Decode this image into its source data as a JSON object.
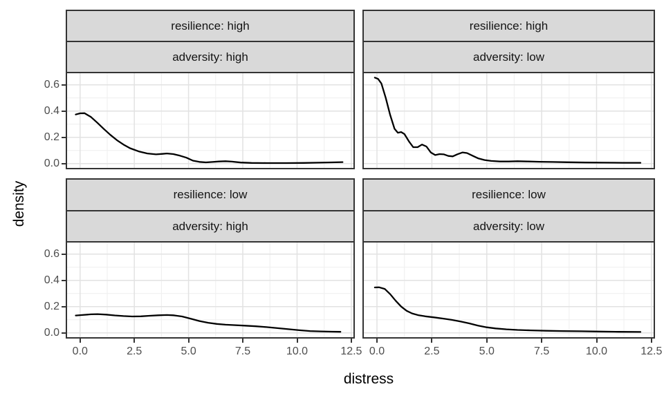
{
  "chart_data": {
    "type": "line",
    "subtype": "faceted-density",
    "xlabel": "distress",
    "ylabel": "density",
    "x_domain": [
      -0.6,
      12.6
    ],
    "y_domain": [
      -0.033,
      0.688
    ],
    "x_major_ticks": [
      0,
      2.5,
      5,
      7.5,
      10,
      12.5
    ],
    "x_minor_ticks": [
      1.25,
      3.75,
      6.25,
      8.75,
      11.25
    ],
    "y_major_ticks": [
      0,
      0.2,
      0.4,
      0.6
    ],
    "y_minor_ticks": [
      0.1,
      0.3,
      0.5
    ],
    "x_tick_labels": [
      "0.0",
      "2.5",
      "5.0",
      "7.5",
      "10.0",
      "12.5"
    ],
    "y_tick_labels": [
      "0.6",
      "0.4",
      "0.2",
      "0.0"
    ],
    "y_tick_values": [
      0.6,
      0.4,
      0.2,
      0.0
    ],
    "facet_row_variable": "resilience",
    "facet_col_variable": "adversity",
    "grid": "on",
    "legend": "none",
    "colors": {
      "line": "#000000",
      "grid_major": "#E2E2E2",
      "grid_minor": "#F0F0F0",
      "panel_border": "#333333",
      "strip_fill": "#D9D9D9",
      "strip_border": "#333333",
      "axis_text": "#4D4D4D",
      "title_text": "#000000",
      "background": "#FFFFFF"
    },
    "panels": [
      {
        "strip_top": "resilience: high",
        "strip_bottom": "adversity: high",
        "points": [
          [
            -0.2,
            0.374
          ],
          [
            0.0,
            0.383
          ],
          [
            0.2,
            0.384
          ],
          [
            0.5,
            0.355
          ],
          [
            0.8,
            0.31
          ],
          [
            1.1,
            0.263
          ],
          [
            1.4,
            0.218
          ],
          [
            1.7,
            0.178
          ],
          [
            2.0,
            0.145
          ],
          [
            2.3,
            0.117
          ],
          [
            2.7,
            0.093
          ],
          [
            3.1,
            0.077
          ],
          [
            3.5,
            0.07
          ],
          [
            3.8,
            0.074
          ],
          [
            4.0,
            0.077
          ],
          [
            4.3,
            0.072
          ],
          [
            4.6,
            0.06
          ],
          [
            4.9,
            0.045
          ],
          [
            5.2,
            0.022
          ],
          [
            5.5,
            0.013
          ],
          [
            5.8,
            0.009
          ],
          [
            6.1,
            0.012
          ],
          [
            6.4,
            0.016
          ],
          [
            6.7,
            0.018
          ],
          [
            7.0,
            0.015
          ],
          [
            7.4,
            0.008
          ],
          [
            7.9,
            0.005
          ],
          [
            8.6,
            0.004
          ],
          [
            9.5,
            0.004
          ],
          [
            10.3,
            0.005
          ],
          [
            11.0,
            0.007
          ],
          [
            11.6,
            0.009
          ],
          [
            12.1,
            0.011
          ]
        ]
      },
      {
        "strip_top": "resilience: high",
        "strip_bottom": "adversity: low",
        "points": [
          [
            -0.1,
            0.655
          ],
          [
            0.05,
            0.645
          ],
          [
            0.2,
            0.61
          ],
          [
            0.4,
            0.5
          ],
          [
            0.6,
            0.37
          ],
          [
            0.8,
            0.265
          ],
          [
            0.95,
            0.235
          ],
          [
            1.1,
            0.24
          ],
          [
            1.25,
            0.225
          ],
          [
            1.45,
            0.17
          ],
          [
            1.65,
            0.125
          ],
          [
            1.85,
            0.125
          ],
          [
            2.05,
            0.145
          ],
          [
            2.25,
            0.13
          ],
          [
            2.45,
            0.085
          ],
          [
            2.65,
            0.065
          ],
          [
            2.85,
            0.072
          ],
          [
            3.05,
            0.07
          ],
          [
            3.25,
            0.058
          ],
          [
            3.45,
            0.055
          ],
          [
            3.65,
            0.07
          ],
          [
            3.9,
            0.085
          ],
          [
            4.1,
            0.08
          ],
          [
            4.35,
            0.06
          ],
          [
            4.6,
            0.04
          ],
          [
            4.9,
            0.027
          ],
          [
            5.2,
            0.02
          ],
          [
            5.6,
            0.016
          ],
          [
            6.0,
            0.016
          ],
          [
            6.4,
            0.018
          ],
          [
            6.9,
            0.016
          ],
          [
            7.4,
            0.014
          ],
          [
            8.0,
            0.012
          ],
          [
            8.7,
            0.01
          ],
          [
            9.5,
            0.008
          ],
          [
            10.3,
            0.007
          ],
          [
            11.2,
            0.006
          ],
          [
            12.0,
            0.006
          ]
        ]
      },
      {
        "strip_top": "resilience: low",
        "strip_bottom": "adversity: high",
        "points": [
          [
            -0.2,
            0.132
          ],
          [
            0.1,
            0.136
          ],
          [
            0.5,
            0.141
          ],
          [
            0.8,
            0.143
          ],
          [
            1.2,
            0.139
          ],
          [
            1.6,
            0.133
          ],
          [
            2.0,
            0.128
          ],
          [
            2.4,
            0.125
          ],
          [
            2.8,
            0.126
          ],
          [
            3.2,
            0.13
          ],
          [
            3.6,
            0.134
          ],
          [
            4.0,
            0.136
          ],
          [
            4.3,
            0.134
          ],
          [
            4.7,
            0.125
          ],
          [
            5.1,
            0.108
          ],
          [
            5.5,
            0.09
          ],
          [
            5.9,
            0.077
          ],
          [
            6.3,
            0.068
          ],
          [
            6.7,
            0.062
          ],
          [
            7.1,
            0.059
          ],
          [
            7.6,
            0.055
          ],
          [
            8.1,
            0.05
          ],
          [
            8.6,
            0.044
          ],
          [
            9.1,
            0.036
          ],
          [
            9.6,
            0.028
          ],
          [
            10.1,
            0.02
          ],
          [
            10.6,
            0.014
          ],
          [
            11.1,
            0.011
          ],
          [
            11.6,
            0.009
          ],
          [
            12.0,
            0.008
          ]
        ]
      },
      {
        "strip_top": "resilience: low",
        "strip_bottom": "adversity: low",
        "points": [
          [
            -0.1,
            0.346
          ],
          [
            0.1,
            0.347
          ],
          [
            0.35,
            0.335
          ],
          [
            0.6,
            0.295
          ],
          [
            0.85,
            0.245
          ],
          [
            1.1,
            0.2
          ],
          [
            1.35,
            0.168
          ],
          [
            1.6,
            0.148
          ],
          [
            1.9,
            0.134
          ],
          [
            2.2,
            0.126
          ],
          [
            2.6,
            0.118
          ],
          [
            3.0,
            0.109
          ],
          [
            3.4,
            0.099
          ],
          [
            3.8,
            0.087
          ],
          [
            4.2,
            0.072
          ],
          [
            4.6,
            0.055
          ],
          [
            5.0,
            0.042
          ],
          [
            5.4,
            0.034
          ],
          [
            5.9,
            0.027
          ],
          [
            6.4,
            0.022
          ],
          [
            7.0,
            0.019
          ],
          [
            7.7,
            0.016
          ],
          [
            8.5,
            0.014
          ],
          [
            9.3,
            0.012
          ],
          [
            10.1,
            0.01
          ],
          [
            11.0,
            0.008
          ],
          [
            12.0,
            0.007
          ]
        ]
      }
    ]
  }
}
